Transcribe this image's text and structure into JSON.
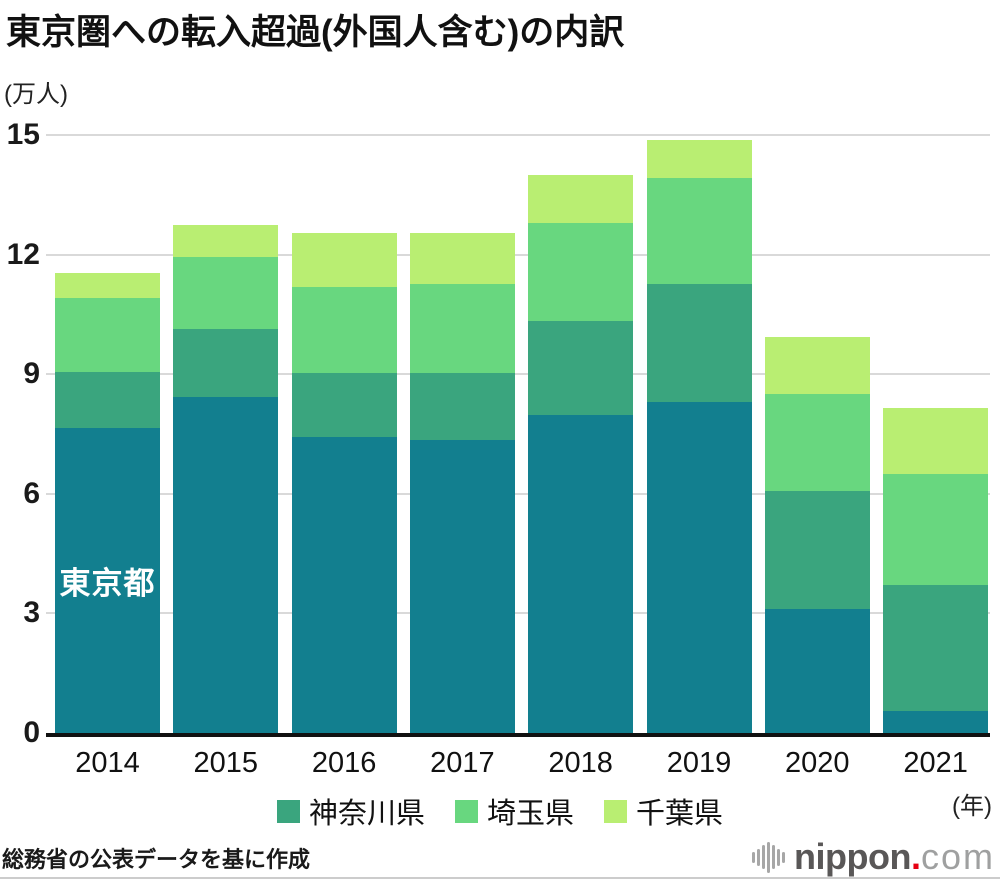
{
  "title": "東京圏への転入超過(外国人含む)の内訳",
  "y_axis_unit": "(万人)",
  "x_axis_unit": "(年)",
  "source_note": "総務省の公表データを基に作成",
  "logo": {
    "name": "nippon",
    "dot": ".",
    "tld": "com",
    "icon": "soundwave-icon"
  },
  "colors": {
    "tokyo": "#127f8f",
    "kanagawa": "#3aa57e",
    "saitama": "#68d77f",
    "chiba": "#b9ee72",
    "gridline": "#d9d9d9",
    "axis": "#111111",
    "logo_text": "#595757",
    "logo_dot": "#e60012",
    "logo_com": "#9fa0a0"
  },
  "chart_data": {
    "type": "bar",
    "stacked": true,
    "title": "東京圏への転入超過(外国人含む)の内訳",
    "ylabel": "(万人)",
    "xlabel": "(年)",
    "ylim": [
      0,
      15
    ],
    "yticks": [
      0,
      3,
      6,
      9,
      12,
      15
    ],
    "grid": true,
    "legend_position": "bottom",
    "categories": [
      "2014",
      "2015",
      "2016",
      "2017",
      "2018",
      "2019",
      "2020",
      "2021"
    ],
    "series": [
      {
        "key": "tokyo",
        "name": "東京都",
        "color": "#127f8f",
        "in_legend": false,
        "values": [
          7.65,
          8.43,
          7.42,
          7.36,
          7.98,
          8.3,
          3.11,
          0.54
        ]
      },
      {
        "key": "kanagawa",
        "name": "神奈川県",
        "color": "#3aa57e",
        "in_legend": true,
        "values": [
          1.4,
          1.7,
          1.61,
          1.67,
          2.35,
          2.96,
          2.96,
          3.18
        ]
      },
      {
        "key": "saitama",
        "name": "埼玉県",
        "color": "#68d77f",
        "in_legend": true,
        "values": [
          1.86,
          1.81,
          2.16,
          2.23,
          2.47,
          2.67,
          2.43,
          2.78
        ]
      },
      {
        "key": "chiba",
        "name": "千葉県",
        "color": "#b9ee72",
        "in_legend": true,
        "values": [
          0.63,
          0.8,
          1.35,
          1.28,
          1.19,
          0.95,
          1.43,
          1.66
        ]
      }
    ],
    "bar_label": {
      "text": "東京都",
      "category": "2014",
      "series_key": "tokyo"
    }
  }
}
